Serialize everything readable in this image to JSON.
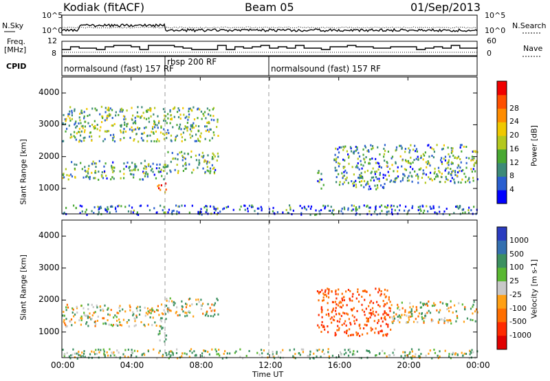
{
  "header": {
    "station": "Kodiak (fitACF)",
    "beam": "Beam 05",
    "date": "01/Sep/2013"
  },
  "panel_labels": {
    "nsky": "N.Sky",
    "nsearch": "N.Search",
    "freq_line1": "Freq.",
    "freq_line2": "[MHz]",
    "nave": "Nave",
    "cpid": "CPID",
    "noise_ticks_left": [
      "10^5",
      "10^0"
    ],
    "noise_ticks_right": [
      "10^5",
      "10^0"
    ],
    "freq_ticks_left": [
      "12",
      "8"
    ],
    "nave_ticks_right": [
      "60",
      "0"
    ]
  },
  "cpid_segments": [
    {
      "label": "normalsound (fast) 157 RF",
      "start": 0,
      "end": 6
    },
    {
      "label": "rbsp 200 RF",
      "start": 6,
      "end": 12
    },
    {
      "label": "normalsound (fast) 157 RF",
      "start": 12,
      "end": 24
    }
  ],
  "axes": {
    "xlabel": "Time UT",
    "ylabel": "Slant Range [km]",
    "x_ticks": [
      "00:00",
      "04:00",
      "08:00",
      "12:00",
      "16:00",
      "20:00",
      "00:00"
    ],
    "y_ticks": [
      "1000",
      "2000",
      "3000",
      "4000"
    ]
  },
  "power_colorbar": {
    "label": "Power [dB]",
    "ticks": [
      "4",
      "8",
      "12",
      "16",
      "20",
      "24",
      "28"
    ],
    "colors": [
      "#0000ff",
      "#2a5fd0",
      "#3c8a78",
      "#48a832",
      "#b4c81e",
      "#f0c800",
      "#ff8c00",
      "#ff5000",
      "#f00000"
    ]
  },
  "velocity_colorbar": {
    "label": "Velocity [m s-1]",
    "ticks": [
      "1000",
      "500",
      "100",
      "25",
      "-25",
      "-100",
      "-500",
      "-1000"
    ],
    "colors": [
      "#2a3cc0",
      "#3470b0",
      "#3c9060",
      "#5ab832",
      "#c8c8c8",
      "#ffa014",
      "#ff6e00",
      "#ff2a00",
      "#e00000"
    ]
  },
  "chart_data": [
    {
      "type": "heatmap",
      "title": "Power",
      "xlabel": "Time UT",
      "ylabel": "Slant Range [km]",
      "xlim": [
        0,
        24
      ],
      "ylim": [
        200,
        4500
      ],
      "colorbar_range": [
        0,
        30
      ],
      "regions": [
        {
          "t_start": 0.0,
          "t_end": 6.0,
          "range_min": 1300,
          "range_max": 1900,
          "power_db": 10
        },
        {
          "t_start": 5.5,
          "t_end": 6.0,
          "range_min": 800,
          "range_max": 1200,
          "power_db": 26
        },
        {
          "t_start": 6.0,
          "t_end": 9.0,
          "range_min": 1500,
          "range_max": 2200,
          "power_db": 10
        },
        {
          "t_start": 0.0,
          "t_end": 9.0,
          "range_min": 2500,
          "range_max": 3600,
          "power_db": 12
        },
        {
          "t_start": 0.0,
          "t_end": 24.0,
          "range_min": 200,
          "range_max": 500,
          "power_db": 6
        },
        {
          "t_start": 14.7,
          "t_end": 15.1,
          "range_min": 1000,
          "range_max": 1600,
          "power_db": 8
        },
        {
          "t_start": 15.7,
          "t_end": 19.0,
          "range_min": 1000,
          "range_max": 2400,
          "power_db": 9
        },
        {
          "t_start": 19.0,
          "t_end": 24.0,
          "range_min": 1200,
          "range_max": 2400,
          "power_db": 10
        }
      ]
    },
    {
      "type": "heatmap",
      "title": "Velocity",
      "xlabel": "Time UT",
      "ylabel": "Slant Range [km]",
      "xlim": [
        0,
        24
      ],
      "ylim": [
        200,
        4500
      ],
      "colorbar_range": [
        -1000,
        1000
      ],
      "regions": [
        {
          "t_start": 0.0,
          "t_end": 6.0,
          "range_min": 1200,
          "range_max": 1900,
          "velocity": 0
        },
        {
          "t_start": 5.5,
          "t_end": 6.0,
          "range_min": 700,
          "range_max": 1200,
          "velocity": 150
        },
        {
          "t_start": 6.0,
          "t_end": 9.0,
          "range_min": 1500,
          "range_max": 2100,
          "velocity": 0
        },
        {
          "t_start": 0.0,
          "t_end": 24.0,
          "range_min": 200,
          "range_max": 500,
          "velocity": 60
        },
        {
          "t_start": 14.7,
          "t_end": 19.0,
          "range_min": 900,
          "range_max": 2400,
          "velocity": -300
        },
        {
          "t_start": 19.0,
          "t_end": 24.0,
          "range_min": 1300,
          "range_max": 2000,
          "velocity": 0
        }
      ]
    }
  ]
}
